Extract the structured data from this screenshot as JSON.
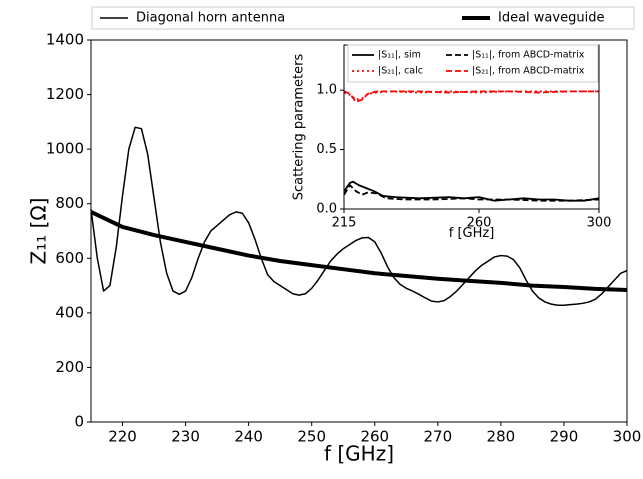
{
  "chart_data": [
    {
      "type": "line",
      "xlabel": "f [GHz]",
      "ylabel": "Z₁₁ [Ω]",
      "xlim": [
        215,
        300
      ],
      "xticks": [
        220,
        230,
        240,
        250,
        260,
        270,
        280,
        290,
        300
      ],
      "ylim": [
        0,
        1400
      ],
      "yticks": [
        0,
        200,
        400,
        600,
        800,
        1000,
        1200,
        1400
      ],
      "legend": "top",
      "series": [
        {
          "name": "Diagonal horn antenna",
          "color": "#000000",
          "linewidth": 1.5,
          "linestyle": "solid",
          "x": [
            215,
            216,
            217,
            218,
            219,
            220,
            221,
            222,
            223,
            224,
            225,
            226,
            227,
            228,
            229,
            230,
            231,
            232,
            233,
            234,
            235,
            236,
            237,
            238,
            239,
            240,
            241,
            242,
            243,
            244,
            245,
            246,
            247,
            248,
            249,
            250,
            251,
            252,
            253,
            254,
            255,
            256,
            257,
            258,
            259,
            260,
            261,
            262,
            263,
            264,
            265,
            266,
            267,
            268,
            269,
            270,
            271,
            272,
            273,
            274,
            275,
            276,
            277,
            278,
            279,
            280,
            281,
            282,
            283,
            284,
            285,
            286,
            287,
            288,
            289,
            290,
            291,
            292,
            293,
            294,
            295,
            296,
            297,
            298,
            299,
            300
          ],
          "values": [
            780,
            600,
            480,
            500,
            640,
            830,
            1000,
            1080,
            1075,
            980,
            820,
            660,
            545,
            480,
            468,
            480,
            530,
            600,
            660,
            700,
            720,
            740,
            760,
            770,
            765,
            730,
            670,
            600,
            540,
            515,
            500,
            485,
            470,
            465,
            470,
            490,
            520,
            555,
            590,
            615,
            635,
            650,
            665,
            675,
            676,
            660,
            620,
            570,
            530,
            505,
            490,
            480,
            468,
            455,
            443,
            440,
            445,
            460,
            480,
            505,
            530,
            555,
            575,
            590,
            605,
            610,
            608,
            595,
            565,
            520,
            480,
            455,
            440,
            432,
            428,
            428,
            430,
            432,
            435,
            440,
            450,
            470,
            495,
            520,
            545,
            555
          ]
        },
        {
          "name": "Ideal waveguide",
          "color": "#000000",
          "linewidth": 4,
          "linestyle": "solid",
          "x": [
            215,
            220,
            225,
            230,
            235,
            240,
            245,
            250,
            255,
            260,
            265,
            270,
            275,
            280,
            285,
            290,
            295,
            300
          ],
          "values": [
            770,
            715,
            685,
            660,
            635,
            610,
            590,
            575,
            560,
            545,
            535,
            525,
            517,
            510,
            500,
            495,
            488,
            484
          ]
        }
      ]
    },
    {
      "type": "line",
      "xlabel": "f [GHz]",
      "ylabel": "Scattering parameters",
      "xlim": [
        215,
        300
      ],
      "xticks": [
        215,
        260,
        300
      ],
      "ylim": [
        0,
        1.38
      ],
      "yticks": [
        {
          "value": 0,
          "label": "0.0"
        },
        {
          "value": 0.5,
          "label": "0.5"
        },
        {
          "value": 1,
          "label": "1.0"
        }
      ],
      "legend": "upper right",
      "series": [
        {
          "name": "|S₁₁|, sim",
          "color": "#000000",
          "linewidth": 1.8,
          "linestyle": "solid",
          "x": [
            215,
            217,
            218,
            220,
            222,
            225,
            228,
            232,
            240,
            250,
            255,
            260,
            265,
            270,
            275,
            280,
            285,
            290,
            295,
            300
          ],
          "values": [
            0.15,
            0.22,
            0.23,
            0.2,
            0.18,
            0.15,
            0.11,
            0.1,
            0.09,
            0.1,
            0.09,
            0.1,
            0.07,
            0.08,
            0.09,
            0.08,
            0.08,
            0.07,
            0.07,
            0.09
          ]
        },
        {
          "name": "|S₂₁|, calc",
          "color": "#ff0000",
          "linewidth": 1.8,
          "linestyle": "dotted",
          "x": [
            215,
            217,
            219,
            221,
            223,
            226,
            230,
            240,
            250,
            260,
            270,
            280,
            290,
            300
          ],
          "values": [
            0.98,
            0.96,
            0.92,
            0.93,
            0.97,
            0.98,
            0.99,
            0.98,
            0.99,
            0.98,
            0.99,
            0.99,
            0.99,
            0.99
          ]
        },
        {
          "name": "|S₁₁|, from ABCD-matrix",
          "color": "#000000",
          "linewidth": 1.8,
          "linestyle": "dashed",
          "x": [
            215,
            217,
            219,
            221,
            223,
            226,
            229,
            235,
            245,
            255,
            260,
            270,
            280,
            290,
            300
          ],
          "values": [
            0.12,
            0.2,
            0.15,
            0.12,
            0.14,
            0.13,
            0.09,
            0.08,
            0.08,
            0.09,
            0.08,
            0.08,
            0.07,
            0.07,
            0.08
          ]
        },
        {
          "name": "|S₂₁|, from ABCD-matrix",
          "color": "#ff0000",
          "linewidth": 1.8,
          "linestyle": "dashed",
          "x": [
            215,
            217,
            219,
            221,
            223,
            226,
            230,
            240,
            250,
            260,
            270,
            280,
            290,
            300
          ],
          "values": [
            0.99,
            0.97,
            0.9,
            0.92,
            0.97,
            0.99,
            0.99,
            0.99,
            0.98,
            0.99,
            0.99,
            0.98,
            0.99,
            0.99
          ]
        }
      ]
    }
  ]
}
